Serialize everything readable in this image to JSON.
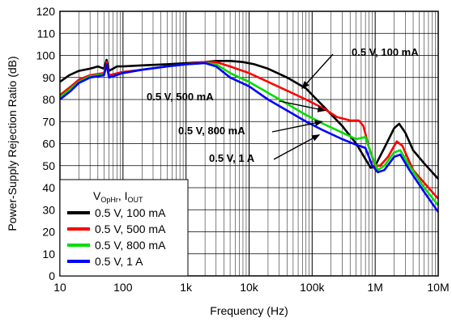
{
  "chart_data": {
    "type": "line",
    "xlabel": "Frequency (Hz)",
    "ylabel": "Power-Supply Rejection Ratio (dB)",
    "xscale": "log",
    "xlim": [
      10,
      10000000
    ],
    "ylim": [
      0,
      120
    ],
    "xticks": [
      {
        "value": 10,
        "label": "10"
      },
      {
        "value": 100,
        "label": "100"
      },
      {
        "value": 1000,
        "label": "1k"
      },
      {
        "value": 10000,
        "label": "10k"
      },
      {
        "value": 100000,
        "label": "100k"
      },
      {
        "value": 1000000,
        "label": "1M"
      },
      {
        "value": 10000000,
        "label": "10M"
      }
    ],
    "yticks": [
      0,
      10,
      20,
      30,
      40,
      50,
      60,
      70,
      80,
      90,
      100,
      110,
      120
    ],
    "grid": true,
    "legend": {
      "title_main": "V",
      "title_sub1": "OpHr",
      "title_sep": ", I",
      "title_sub2": "OUT",
      "placement": "bottom-left"
    },
    "series": [
      {
        "name": "0.5 V, 100 mA",
        "color": "#000000",
        "points": [
          [
            10,
            88
          ],
          [
            14,
            91
          ],
          [
            20,
            93
          ],
          [
            30,
            94
          ],
          [
            40,
            95
          ],
          [
            50,
            94
          ],
          [
            55,
            98
          ],
          [
            60,
            93
          ],
          [
            80,
            95
          ],
          [
            100,
            95
          ],
          [
            200,
            95.5
          ],
          [
            500,
            96
          ],
          [
            1000,
            96.5
          ],
          [
            2000,
            97
          ],
          [
            3000,
            97.5
          ],
          [
            5000,
            97.5
          ],
          [
            8000,
            97
          ],
          [
            12000,
            96
          ],
          [
            20000,
            94
          ],
          [
            40000,
            90
          ],
          [
            80000,
            85
          ],
          [
            150000,
            77
          ],
          [
            300000,
            68
          ],
          [
            500000,
            60
          ],
          [
            700000,
            53
          ],
          [
            850000,
            49
          ],
          [
            1000000,
            50
          ],
          [
            1400000,
            58
          ],
          [
            2000000,
            67
          ],
          [
            2400000,
            69
          ],
          [
            3000000,
            65
          ],
          [
            4000000,
            57
          ],
          [
            6000000,
            51
          ],
          [
            10000000,
            44
          ]
        ]
      },
      {
        "name": "0.5 V, 500 mA",
        "color": "#ff0000",
        "points": [
          [
            10,
            82
          ],
          [
            15,
            86
          ],
          [
            20,
            89
          ],
          [
            30,
            91
          ],
          [
            50,
            92
          ],
          [
            55,
            97
          ],
          [
            60,
            91
          ],
          [
            100,
            92.5
          ],
          [
            200,
            93.5
          ],
          [
            500,
            95
          ],
          [
            1000,
            96
          ],
          [
            2000,
            97
          ],
          [
            3000,
            97
          ],
          [
            5000,
            95
          ],
          [
            10000,
            92
          ],
          [
            20000,
            88
          ],
          [
            40000,
            84
          ],
          [
            80000,
            80
          ],
          [
            150000,
            76
          ],
          [
            250000,
            72
          ],
          [
            400000,
            70.5
          ],
          [
            550000,
            70.5
          ],
          [
            650000,
            68
          ],
          [
            800000,
            58
          ],
          [
            1000000,
            50
          ],
          [
            1200000,
            50
          ],
          [
            1600000,
            54
          ],
          [
            2200000,
            61
          ],
          [
            2700000,
            59
          ],
          [
            4000000,
            48
          ],
          [
            7000000,
            40
          ],
          [
            10000000,
            35
          ]
        ]
      },
      {
        "name": "0.5 V, 800 mA",
        "color": "#00dd00",
        "points": [
          [
            10,
            81
          ],
          [
            15,
            85
          ],
          [
            20,
            88
          ],
          [
            30,
            90.5
          ],
          [
            50,
            91.5
          ],
          [
            55,
            96
          ],
          [
            60,
            90
          ],
          [
            100,
            92
          ],
          [
            200,
            93.5
          ],
          [
            500,
            95
          ],
          [
            1000,
            96
          ],
          [
            2000,
            96.5
          ],
          [
            3000,
            96
          ],
          [
            5000,
            92
          ],
          [
            10000,
            88
          ],
          [
            20000,
            83
          ],
          [
            40000,
            78
          ],
          [
            80000,
            73
          ],
          [
            150000,
            69
          ],
          [
            300000,
            65
          ],
          [
            500000,
            62
          ],
          [
            700000,
            63
          ],
          [
            900000,
            54
          ],
          [
            1100000,
            48
          ],
          [
            1400000,
            50
          ],
          [
            2000000,
            56
          ],
          [
            2500000,
            57
          ],
          [
            3500000,
            50
          ],
          [
            6000000,
            40
          ],
          [
            10000000,
            32
          ]
        ]
      },
      {
        "name": "0.5 V, 1 A",
        "color": "#0000ff",
        "points": [
          [
            10,
            80
          ],
          [
            15,
            84
          ],
          [
            20,
            87.5
          ],
          [
            30,
            90
          ],
          [
            50,
            91
          ],
          [
            55,
            96
          ],
          [
            60,
            90
          ],
          [
            100,
            92
          ],
          [
            200,
            93.5
          ],
          [
            500,
            95
          ],
          [
            1000,
            96
          ],
          [
            2000,
            96.5
          ],
          [
            3000,
            95
          ],
          [
            5000,
            90
          ],
          [
            10000,
            86
          ],
          [
            20000,
            80
          ],
          [
            40000,
            75
          ],
          [
            80000,
            70
          ],
          [
            150000,
            66
          ],
          [
            300000,
            62
          ],
          [
            500000,
            59.5
          ],
          [
            700000,
            58
          ],
          [
            900000,
            50
          ],
          [
            1100000,
            47
          ],
          [
            1400000,
            48
          ],
          [
            2000000,
            54
          ],
          [
            2500000,
            55
          ],
          [
            3500000,
            48
          ],
          [
            6000000,
            38
          ],
          [
            10000000,
            29
          ]
        ]
      }
    ],
    "annotations": [
      {
        "text": "0.5 V, 100 mA",
        "series": 0
      },
      {
        "text": "0.5 V, 500 mA",
        "series": 1
      },
      {
        "text": "0.5 V, 800 mA",
        "series": 2
      },
      {
        "text": "0.5 V, 1 A",
        "series": 3
      }
    ]
  }
}
